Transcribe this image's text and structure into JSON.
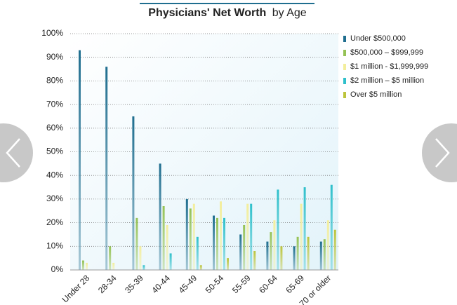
{
  "chart_data": {
    "type": "bar",
    "title_parts": [
      "Physicians' Net Worth",
      "by Age"
    ],
    "categories": [
      "Under 28",
      "28-34",
      "35-39",
      "40-44",
      "45-49",
      "50-54",
      "55-59",
      "60-64",
      "65-69",
      "70 or older"
    ],
    "series": [
      {
        "name": "Under $500,000",
        "color": "#1f6e8f",
        "values": [
          93,
          86,
          65,
          45,
          30,
          23,
          15,
          12,
          10,
          12
        ]
      },
      {
        "name": "$500,000 – $999,999",
        "color": "#95c255",
        "values": [
          4,
          10,
          22,
          27,
          26,
          22,
          19,
          16,
          14,
          13
        ]
      },
      {
        "name": "$1 million - $1,999,999",
        "color": "#f3ee9c",
        "values": [
          3,
          3,
          10,
          19,
          28,
          29,
          28,
          21,
          28,
          21
        ]
      },
      {
        "name": "$2 million – $5 million",
        "color": "#2fc0cb",
        "values": [
          0,
          0,
          2,
          7,
          14,
          22,
          28,
          34,
          35,
          36
        ]
      },
      {
        "name": "Over $5 million",
        "color": "#bcc43c",
        "values": [
          0,
          0,
          0,
          0,
          2,
          5,
          8,
          10,
          14,
          17
        ]
      }
    ],
    "ylim": [
      0,
      100
    ],
    "yticks": [
      {
        "value": 0,
        "label": "0%"
      },
      {
        "value": 10,
        "label": "10%"
      },
      {
        "value": 20,
        "label": "20%"
      },
      {
        "value": 30,
        "label": "30%"
      },
      {
        "value": 40,
        "label": "40%"
      },
      {
        "value": 50,
        "label": "50%"
      },
      {
        "value": 60,
        "label": "60%"
      },
      {
        "value": 70,
        "label": "70%"
      },
      {
        "value": 80,
        "label": "80%"
      },
      {
        "value": 90,
        "label": "90%"
      },
      {
        "value": 100,
        "label": "100%"
      }
    ],
    "grid": true,
    "legend": "right"
  }
}
